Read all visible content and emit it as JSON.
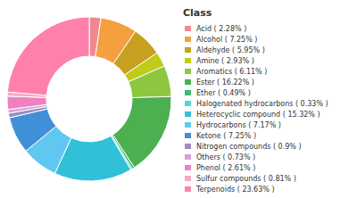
{
  "chart_data": {
    "type": "pie",
    "title": "Class",
    "categories": [
      "Acid ( 2.28% )",
      "Alcohol ( 7.25% )",
      "Aldehyde ( 5.95% )",
      "Amine ( 2.93% )",
      "Aromatics ( 6.11% )",
      "Ester ( 16.22% )",
      "Ether ( 0.49% )",
      "Halogenated hydrocarbons ( 0.33% )",
      "Heterocyclic compound ( 15.32% )",
      "Hydrocarbons ( 7.17% )",
      "Ketone ( 7.25% )",
      "Nitrogen compounds ( 0.9% )",
      "Others ( 0.73% )",
      "Phenol ( 2.61% )",
      "Sulfur compounds ( 0.81% )",
      "Terpenoids ( 23.63% )"
    ],
    "values": [
      2.28,
      7.25,
      5.95,
      2.93,
      6.11,
      16.22,
      0.49,
      0.33,
      15.32,
      7.17,
      7.25,
      0.9,
      0.73,
      2.61,
      0.81,
      23.63
    ],
    "colors": [
      "#F08890",
      "#F5A040",
      "#C8A020",
      "#BFCC1A",
      "#8DC63F",
      "#4CAF50",
      "#3CB878",
      "#50D8C8",
      "#30C0D8",
      "#60C8F0",
      "#4090D8",
      "#9B8EC4",
      "#D8A0D8",
      "#EE82BE",
      "#F4A8C8",
      "#FF80AB"
    ],
    "legend": "right"
  }
}
